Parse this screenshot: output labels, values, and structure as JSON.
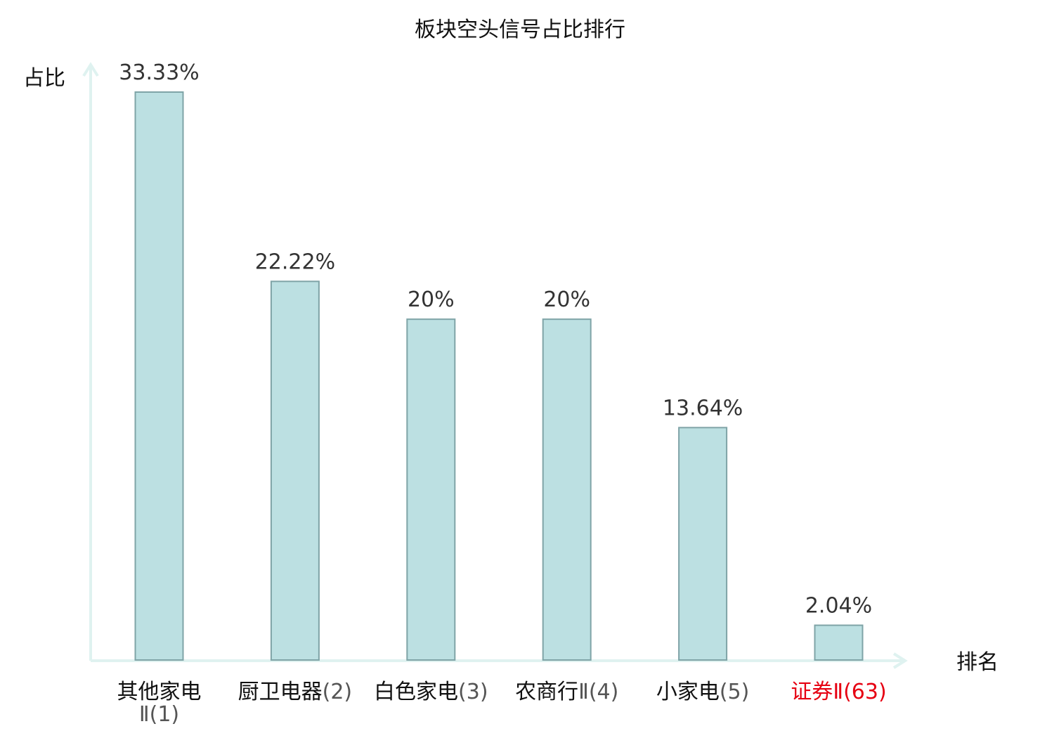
{
  "chart_data": {
    "type": "bar",
    "title": "板块空头信号占比排行",
    "ylabel": "占比",
    "xlabel": "排名",
    "categories": [
      {
        "name": "其他家电Ⅱ",
        "rank": "(1)"
      },
      {
        "name": "厨卫电器",
        "rank": "(2)"
      },
      {
        "name": "白色家电",
        "rank": "(3)"
      },
      {
        "name": "农商行Ⅱ",
        "rank": "(4)"
      },
      {
        "name": "小家电",
        "rank": "(5)"
      },
      {
        "name": "证券Ⅱ",
        "rank": "(63)"
      }
    ],
    "values": [
      33.33,
      22.22,
      20,
      20,
      13.64,
      2.04
    ],
    "value_labels": [
      "33.33%",
      "22.22%",
      "20%",
      "20%",
      "13.64%",
      "2.04%"
    ],
    "highlighted_category_index": 5,
    "ylim": [
      0,
      35
    ],
    "grid": false,
    "legend": "none",
    "colors": {
      "bar_fill": "#bce0e2",
      "bar_stroke": "#7fa4a7",
      "axis": "#dff2f0",
      "highlight_text": "#e60012"
    }
  }
}
